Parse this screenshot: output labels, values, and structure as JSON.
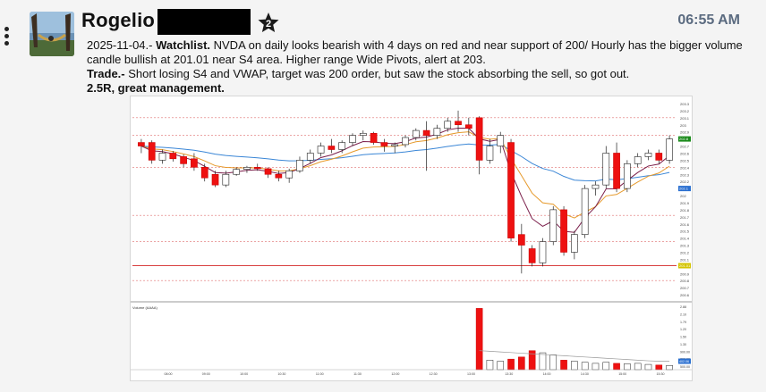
{
  "header": {
    "username": "Rogelio",
    "badge_count": "2",
    "time": "06:55 AM"
  },
  "message": {
    "line1_prefix": "2025-11-04.- ",
    "line1_bold": "Watchlist.",
    "line1_text": " NVDA on daily looks bearish with 4 days on red and near support of 200/ Hourly has the bigger volume candle bullish at 201.01 near S4 area. Higher range Wide Pivots, alert at 203.",
    "trade_bold": "Trade.-",
    "trade_text": " Short losing S4 and VWAP, target was 200 order, but saw the stock absorbing the sell, so got out.",
    "result_bold": "2.5R, great management."
  },
  "chart_data": {
    "type": "candlestick",
    "ticker": "NVDA",
    "price_axis_labels": [
      "203.3",
      "203.2",
      "203.1",
      "203",
      "202.9",
      "202.8",
      "202.7",
      "202.6",
      "202.5",
      "202.4",
      "202.3",
      "202.2",
      "202.1",
      "202",
      "201.9",
      "201.8",
      "201.7",
      "201.6",
      "201.5",
      "201.4",
      "201.3",
      "201.2",
      "201.1",
      "201",
      "200.9",
      "200.8",
      "200.7",
      "200.6"
    ],
    "price_range": [
      200.55,
      203.35
    ],
    "current_price_tag": "202.8",
    "support_tag": "201.01",
    "ma_tag": "202.1",
    "candles": [
      {
        "o": 202.75,
        "h": 202.8,
        "l": 202.6,
        "c": 202.7
      },
      {
        "o": 202.75,
        "h": 202.78,
        "l": 202.45,
        "c": 202.5
      },
      {
        "o": 202.5,
        "h": 202.65,
        "l": 202.45,
        "c": 202.6
      },
      {
        "o": 202.6,
        "h": 202.63,
        "l": 202.48,
        "c": 202.52
      },
      {
        "o": 202.55,
        "h": 202.58,
        "l": 202.4,
        "c": 202.45
      },
      {
        "o": 202.52,
        "h": 202.6,
        "l": 202.35,
        "c": 202.4
      },
      {
        "o": 202.4,
        "h": 202.45,
        "l": 202.2,
        "c": 202.25
      },
      {
        "o": 202.3,
        "h": 202.35,
        "l": 202.12,
        "c": 202.15
      },
      {
        "o": 202.15,
        "h": 202.35,
        "l": 202.12,
        "c": 202.3
      },
      {
        "o": 202.3,
        "h": 202.4,
        "l": 202.28,
        "c": 202.37
      },
      {
        "o": 202.37,
        "h": 202.42,
        "l": 202.32,
        "c": 202.4
      },
      {
        "o": 202.4,
        "h": 202.45,
        "l": 202.35,
        "c": 202.38
      },
      {
        "o": 202.38,
        "h": 202.4,
        "l": 202.25,
        "c": 202.3
      },
      {
        "o": 202.3,
        "h": 202.35,
        "l": 202.2,
        "c": 202.25
      },
      {
        "o": 202.25,
        "h": 202.38,
        "l": 202.18,
        "c": 202.35
      },
      {
        "o": 202.35,
        "h": 202.55,
        "l": 202.32,
        "c": 202.5
      },
      {
        "o": 202.5,
        "h": 202.65,
        "l": 202.45,
        "c": 202.6
      },
      {
        "o": 202.6,
        "h": 202.75,
        "l": 202.55,
        "c": 202.7
      },
      {
        "o": 202.7,
        "h": 202.8,
        "l": 202.6,
        "c": 202.65
      },
      {
        "o": 202.65,
        "h": 202.78,
        "l": 202.6,
        "c": 202.75
      },
      {
        "o": 202.75,
        "h": 202.88,
        "l": 202.7,
        "c": 202.85
      },
      {
        "o": 202.85,
        "h": 202.92,
        "l": 202.78,
        "c": 202.88
      },
      {
        "o": 202.88,
        "h": 202.9,
        "l": 202.72,
        "c": 202.75
      },
      {
        "o": 202.75,
        "h": 202.8,
        "l": 202.62,
        "c": 202.7
      },
      {
        "o": 202.7,
        "h": 202.75,
        "l": 202.6,
        "c": 202.72
      },
      {
        "o": 202.72,
        "h": 202.85,
        "l": 202.68,
        "c": 202.82
      },
      {
        "o": 202.82,
        "h": 202.95,
        "l": 202.78,
        "c": 202.92
      },
      {
        "o": 202.92,
        "h": 203.05,
        "l": 202.35,
        "c": 202.85
      },
      {
        "o": 202.85,
        "h": 203.0,
        "l": 202.8,
        "c": 202.95
      },
      {
        "o": 202.95,
        "h": 203.1,
        "l": 202.9,
        "c": 203.05
      },
      {
        "o": 203.05,
        "h": 203.2,
        "l": 202.9,
        "c": 203.0
      },
      {
        "o": 203.0,
        "h": 203.1,
        "l": 202.85,
        "c": 202.95
      },
      {
        "o": 203.1,
        "h": 203.12,
        "l": 202.3,
        "c": 202.5
      },
      {
        "o": 202.5,
        "h": 202.8,
        "l": 202.45,
        "c": 202.7
      },
      {
        "o": 202.7,
        "h": 202.9,
        "l": 202.6,
        "c": 202.85
      },
      {
        "o": 202.75,
        "h": 202.8,
        "l": 201.35,
        "c": 201.4
      },
      {
        "o": 201.45,
        "h": 201.6,
        "l": 200.9,
        "c": 201.3
      },
      {
        "o": 201.25,
        "h": 201.3,
        "l": 201.0,
        "c": 201.05
      },
      {
        "o": 201.05,
        "h": 201.4,
        "l": 201.0,
        "c": 201.35
      },
      {
        "o": 201.35,
        "h": 201.85,
        "l": 201.3,
        "c": 201.8
      },
      {
        "o": 201.8,
        "h": 201.85,
        "l": 201.15,
        "c": 201.2
      },
      {
        "o": 201.2,
        "h": 201.5,
        "l": 201.1,
        "c": 201.45
      },
      {
        "o": 201.45,
        "h": 202.15,
        "l": 201.4,
        "c": 202.1
      },
      {
        "o": 202.1,
        "h": 202.2,
        "l": 202.0,
        "c": 202.15
      },
      {
        "o": 202.15,
        "h": 202.7,
        "l": 202.1,
        "c": 202.6
      },
      {
        "o": 202.6,
        "h": 202.75,
        "l": 202.05,
        "c": 202.1
      },
      {
        "o": 202.1,
        "h": 202.5,
        "l": 202.05,
        "c": 202.45
      },
      {
        "o": 202.45,
        "h": 202.6,
        "l": 202.4,
        "c": 202.55
      },
      {
        "o": 202.55,
        "h": 202.65,
        "l": 202.5,
        "c": 202.6
      },
      {
        "o": 202.6,
        "h": 202.65,
        "l": 202.45,
        "c": 202.5
      },
      {
        "o": 202.5,
        "h": 202.85,
        "l": 202.45,
        "c": 202.8
      }
    ],
    "volume_label": "Volume (AAAA)",
    "volume_axis_labels": [
      "2.88",
      "2.10",
      "1.79",
      "1.20",
      "1.50",
      "1.30",
      "900.00",
      "800.00",
      "500.00"
    ],
    "volume_tag": "402.06",
    "volumes": [
      0,
      0,
      0,
      0,
      0,
      0,
      0,
      0,
      0,
      0,
      0,
      0,
      0,
      0,
      0,
      0,
      0,
      0,
      0,
      0,
      0,
      0,
      0,
      0,
      0,
      0,
      0,
      0,
      0,
      0,
      0,
      0,
      2.9,
      0.45,
      0.4,
      0.5,
      0.6,
      0.9,
      0.8,
      0.7,
      0.45,
      0.4,
      0.35,
      0.3,
      0.35,
      0.3,
      0.28,
      0.3,
      0.25,
      0.22,
      0.2
    ],
    "time_axis_labels": [
      "08:00",
      "09:00",
      "10:00",
      "10:30",
      "11:00",
      "11:30",
      "12:00",
      "12:30",
      "13:00",
      "13:30",
      "14:00",
      "14:30",
      "15:00",
      "15:30"
    ],
    "colors": {
      "up": "#ffffff",
      "down": "#ee1111",
      "vwap": "#3a86d6",
      "ema_fast": "#e69a2c",
      "ema_slow": "#7a1e4a",
      "pivot": "#e07070",
      "support": "#cc0000"
    }
  }
}
